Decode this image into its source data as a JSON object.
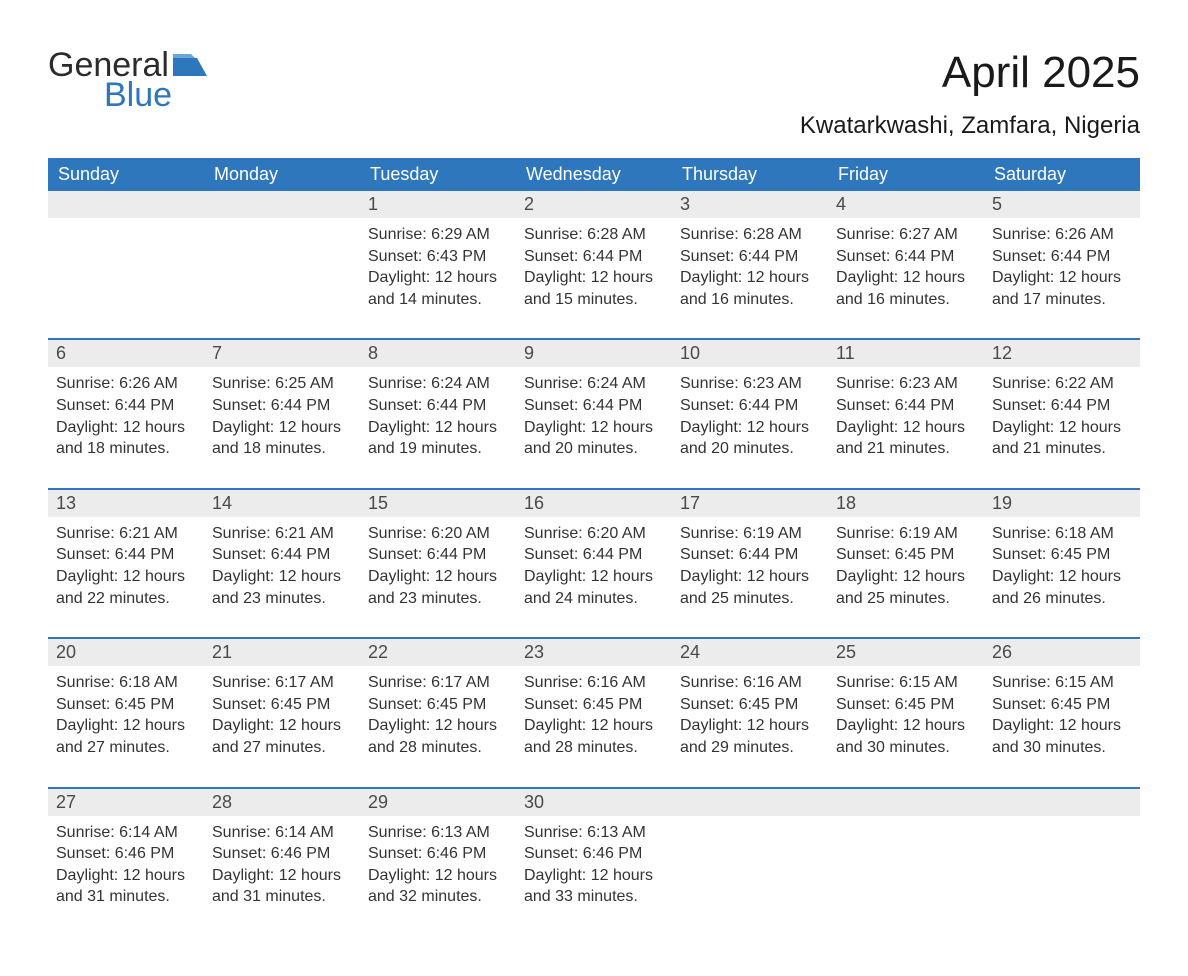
{
  "brand": {
    "word1": "General",
    "word2": "Blue",
    "flag_color": "#2f77bc",
    "text_color_dark": "#2b2b2b"
  },
  "title": "April 2025",
  "location": "Kwatarkwashi, Zamfara, Nigeria",
  "colors": {
    "header_bg": "#2f77bc",
    "header_text": "#ffffff",
    "daynum_bg": "#ececec",
    "row_sep": "#2f77bc",
    "body_text": "#333333",
    "page_bg": "#ffffff"
  },
  "weekdays": [
    "Sunday",
    "Monday",
    "Tuesday",
    "Wednesday",
    "Thursday",
    "Friday",
    "Saturday"
  ],
  "labels": {
    "sunrise": "Sunrise:",
    "sunset": "Sunset:",
    "daylight": "Daylight:"
  },
  "weeks": [
    [
      null,
      null,
      {
        "day": "1",
        "sunrise": "6:29 AM",
        "sunset": "6:43 PM",
        "daylight": "12 hours and 14 minutes."
      },
      {
        "day": "2",
        "sunrise": "6:28 AM",
        "sunset": "6:44 PM",
        "daylight": "12 hours and 15 minutes."
      },
      {
        "day": "3",
        "sunrise": "6:28 AM",
        "sunset": "6:44 PM",
        "daylight": "12 hours and 16 minutes."
      },
      {
        "day": "4",
        "sunrise": "6:27 AM",
        "sunset": "6:44 PM",
        "daylight": "12 hours and 16 minutes."
      },
      {
        "day": "5",
        "sunrise": "6:26 AM",
        "sunset": "6:44 PM",
        "daylight": "12 hours and 17 minutes."
      }
    ],
    [
      {
        "day": "6",
        "sunrise": "6:26 AM",
        "sunset": "6:44 PM",
        "daylight": "12 hours and 18 minutes."
      },
      {
        "day": "7",
        "sunrise": "6:25 AM",
        "sunset": "6:44 PM",
        "daylight": "12 hours and 18 minutes."
      },
      {
        "day": "8",
        "sunrise": "6:24 AM",
        "sunset": "6:44 PM",
        "daylight": "12 hours and 19 minutes."
      },
      {
        "day": "9",
        "sunrise": "6:24 AM",
        "sunset": "6:44 PM",
        "daylight": "12 hours and 20 minutes."
      },
      {
        "day": "10",
        "sunrise": "6:23 AM",
        "sunset": "6:44 PM",
        "daylight": "12 hours and 20 minutes."
      },
      {
        "day": "11",
        "sunrise": "6:23 AM",
        "sunset": "6:44 PM",
        "daylight": "12 hours and 21 minutes."
      },
      {
        "day": "12",
        "sunrise": "6:22 AM",
        "sunset": "6:44 PM",
        "daylight": "12 hours and 21 minutes."
      }
    ],
    [
      {
        "day": "13",
        "sunrise": "6:21 AM",
        "sunset": "6:44 PM",
        "daylight": "12 hours and 22 minutes."
      },
      {
        "day": "14",
        "sunrise": "6:21 AM",
        "sunset": "6:44 PM",
        "daylight": "12 hours and 23 minutes."
      },
      {
        "day": "15",
        "sunrise": "6:20 AM",
        "sunset": "6:44 PM",
        "daylight": "12 hours and 23 minutes."
      },
      {
        "day": "16",
        "sunrise": "6:20 AM",
        "sunset": "6:44 PM",
        "daylight": "12 hours and 24 minutes."
      },
      {
        "day": "17",
        "sunrise": "6:19 AM",
        "sunset": "6:44 PM",
        "daylight": "12 hours and 25 minutes."
      },
      {
        "day": "18",
        "sunrise": "6:19 AM",
        "sunset": "6:45 PM",
        "daylight": "12 hours and 25 minutes."
      },
      {
        "day": "19",
        "sunrise": "6:18 AM",
        "sunset": "6:45 PM",
        "daylight": "12 hours and 26 minutes."
      }
    ],
    [
      {
        "day": "20",
        "sunrise": "6:18 AM",
        "sunset": "6:45 PM",
        "daylight": "12 hours and 27 minutes."
      },
      {
        "day": "21",
        "sunrise": "6:17 AM",
        "sunset": "6:45 PM",
        "daylight": "12 hours and 27 minutes."
      },
      {
        "day": "22",
        "sunrise": "6:17 AM",
        "sunset": "6:45 PM",
        "daylight": "12 hours and 28 minutes."
      },
      {
        "day": "23",
        "sunrise": "6:16 AM",
        "sunset": "6:45 PM",
        "daylight": "12 hours and 28 minutes."
      },
      {
        "day": "24",
        "sunrise": "6:16 AM",
        "sunset": "6:45 PM",
        "daylight": "12 hours and 29 minutes."
      },
      {
        "day": "25",
        "sunrise": "6:15 AM",
        "sunset": "6:45 PM",
        "daylight": "12 hours and 30 minutes."
      },
      {
        "day": "26",
        "sunrise": "6:15 AM",
        "sunset": "6:45 PM",
        "daylight": "12 hours and 30 minutes."
      }
    ],
    [
      {
        "day": "27",
        "sunrise": "6:14 AM",
        "sunset": "6:46 PM",
        "daylight": "12 hours and 31 minutes."
      },
      {
        "day": "28",
        "sunrise": "6:14 AM",
        "sunset": "6:46 PM",
        "daylight": "12 hours and 31 minutes."
      },
      {
        "day": "29",
        "sunrise": "6:13 AM",
        "sunset": "6:46 PM",
        "daylight": "12 hours and 32 minutes."
      },
      {
        "day": "30",
        "sunrise": "6:13 AM",
        "sunset": "6:46 PM",
        "daylight": "12 hours and 33 minutes."
      },
      null,
      null,
      null
    ]
  ]
}
